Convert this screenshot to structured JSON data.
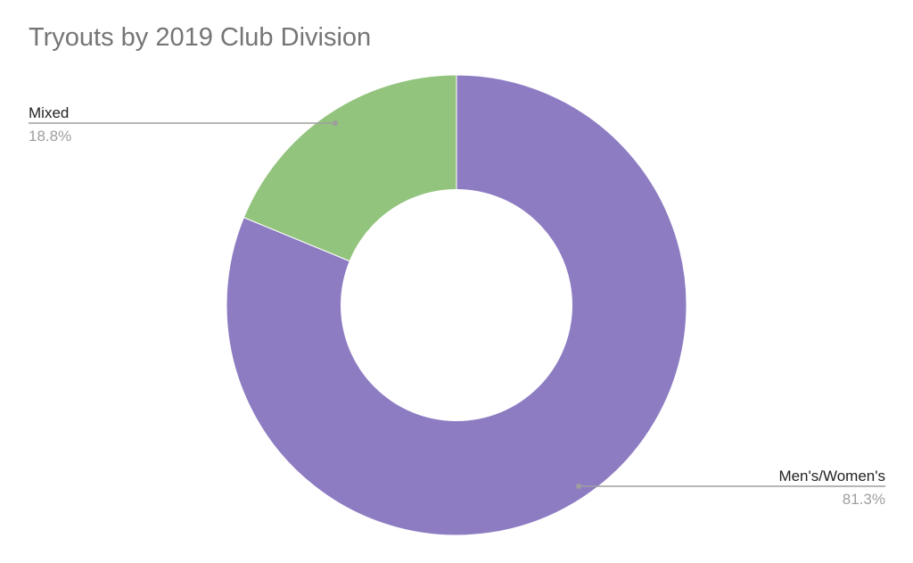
{
  "chart_data": {
    "type": "pie",
    "donut": true,
    "title": "Tryouts by 2019 Club Division",
    "slices": [
      {
        "label": "Men's/Women's",
        "value": 81.3,
        "percent_label": "81.3%",
        "color": "#8e7cc3"
      },
      {
        "label": "Mixed",
        "value": 18.8,
        "percent_label": "18.8%",
        "color": "#93c47d"
      }
    ]
  }
}
